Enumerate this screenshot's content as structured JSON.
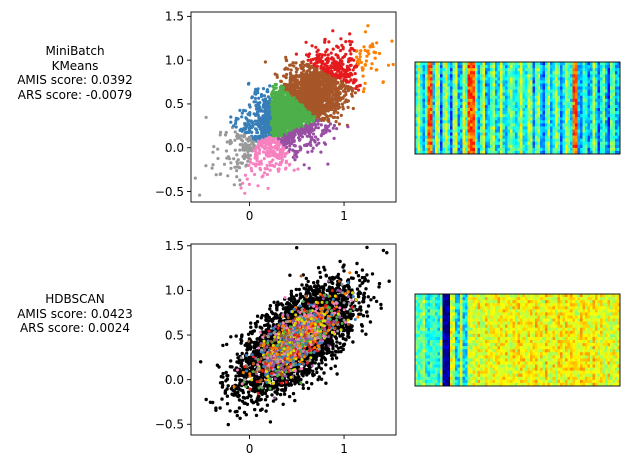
{
  "rows": [
    {
      "label_lines": [
        "MiniBatch",
        "KMeans",
        "AMIS score: 0.0392",
        "ARS score: -0.0079"
      ]
    },
    {
      "label_lines": [
        "HDBSCAN",
        "AMIS score: 0.0423",
        "ARS score: 0.0024"
      ]
    }
  ],
  "chart_data": [
    {
      "type": "scatter",
      "title": "",
      "xlabel": "",
      "ylabel": "",
      "xlim": [
        -0.62,
        1.55
      ],
      "ylim": [
        -0.62,
        1.55
      ],
      "xticks": [
        0,
        1
      ],
      "yticks": [
        -0.5,
        0.0,
        0.5,
        1.0,
        1.5
      ],
      "xtick_labels": [
        "0",
        "1"
      ],
      "ytick_labels": [
        "−0.5",
        "0.0",
        "0.5",
        "1.0",
        "1.5"
      ],
      "grid": false,
      "clusters": [
        {
          "color": "#999999",
          "center": [
            -0.2,
            0.0
          ]
        },
        {
          "color": "#f781bf",
          "center": [
            0.25,
            -0.15
          ]
        },
        {
          "color": "#984ea3",
          "center": [
            0.55,
            0.05
          ]
        },
        {
          "color": "#377eb8",
          "center": [
            0.05,
            0.35
          ]
        },
        {
          "color": "#4daf4a",
          "center": [
            0.4,
            0.35
          ]
        },
        {
          "color": "#a65628",
          "center": [
            0.7,
            0.65
          ]
        },
        {
          "color": "#e41a1c",
          "center": [
            0.95,
            1.05
          ]
        },
        {
          "color": "#ff7f00",
          "center": [
            1.3,
            1.1
          ]
        }
      ]
    },
    {
      "type": "scatter",
      "title": "",
      "xlabel": "",
      "ylabel": "",
      "xlim": [
        -0.62,
        1.55
      ],
      "ylim": [
        -0.62,
        1.52
      ],
      "xticks": [
        0,
        1
      ],
      "yticks": [
        -0.5,
        0.0,
        0.5,
        1.0,
        1.5
      ],
      "xtick_labels": [
        "0",
        "1"
      ],
      "ytick_labels": [
        "−0.5",
        "0.0",
        "0.5",
        "1.0",
        "1.5"
      ],
      "grid": false,
      "noise_color": "#000000",
      "cluster_colors": [
        "#e41a1c",
        "#377eb8",
        "#4daf4a",
        "#984ea3",
        "#ff7f00",
        "#a65628",
        "#f781bf",
        "#999999",
        "#dede00"
      ]
    }
  ],
  "heatmaps": [
    {
      "colormap": "jet",
      "dark_bands": [],
      "description_bands": "vertical streak texture"
    },
    {
      "colormap": "jet",
      "dark_bands": [
        0.13,
        0.16
      ]
    }
  ]
}
